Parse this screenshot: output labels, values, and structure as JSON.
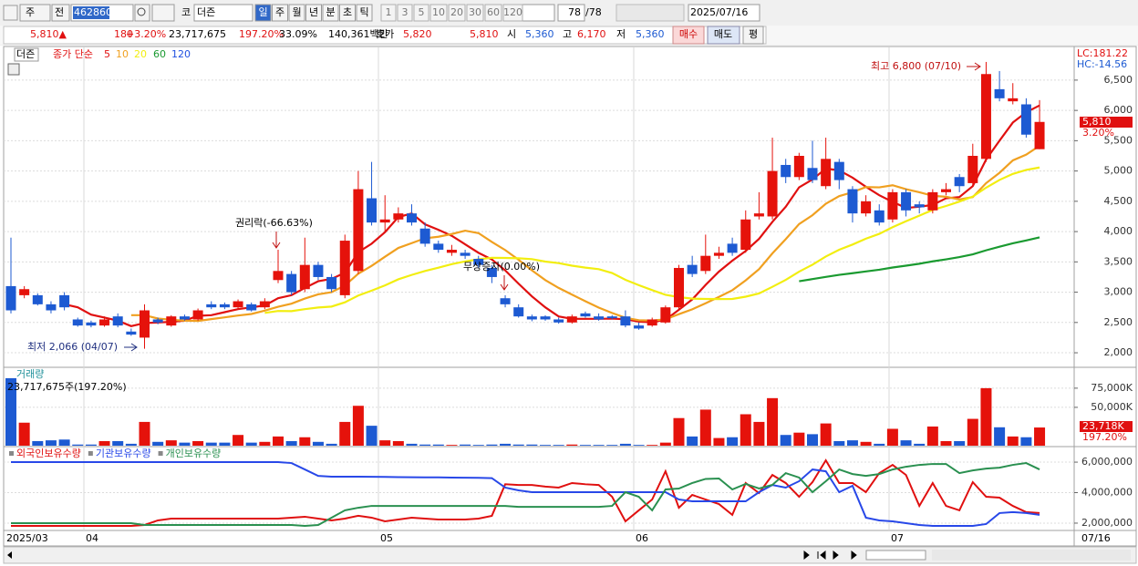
{
  "toolbar": {
    "market": "주",
    "scope": "전",
    "code": "462860",
    "prefix": "코",
    "name": "더즌",
    "periods": [
      "일",
      "주",
      "월",
      "년",
      "분",
      "초",
      "틱"
    ],
    "intervals": [
      1,
      3,
      5,
      10,
      20,
      30,
      60,
      120
    ],
    "count": 78,
    "total": "/78",
    "date": "2025/07/16"
  },
  "quote": {
    "price": "5,810▲",
    "change": 180,
    "change_pct": "+3.20%",
    "volume": "23,717,675",
    "volume_pct": "197.20%",
    "turnover": "33.09%",
    "amount": "140,361백만",
    "bid_label": "호가",
    "ask": "5,820",
    "bid": "5,810",
    "open_label": "시",
    "open": "5,360",
    "high_label": "고",
    "high": "6,170",
    "low_label": "저",
    "low": "5,360",
    "buy": "매수",
    "sell": "매도",
    "avg": "평"
  },
  "x_axis_labels": [
    "2025/03",
    "04",
    "05",
    "06",
    "07"
  ],
  "last_date": "07/16",
  "chart_data": [
    {
      "type": "candlestick",
      "name": "더즌",
      "legend_label": "종가 단순",
      "ma_periods": [
        5,
        10,
        20,
        60,
        120
      ],
      "ma_colors": [
        "#e01010",
        "#f0a020",
        "#f2ee10",
        "#1a9a30",
        "#2050e0"
      ],
      "up_color": "#e5120b",
      "down_color": "#1d5ad2",
      "open": [
        3100,
        2950,
        2950,
        2800,
        2950,
        2550,
        2500,
        2450,
        2600,
        2350,
        2250,
        2550,
        2450,
        2600,
        2550,
        2800,
        2800,
        2750,
        2800,
        2750,
        3200,
        3300,
        3050,
        3450,
        3250,
        2950,
        3350,
        4550,
        4150,
        4200,
        4300,
        4050,
        3800,
        3650,
        3650,
        3550,
        3400,
        2900,
        2750,
        2600,
        2600,
        2550,
        2500,
        2650,
        2600,
        2600,
        2600,
        2450,
        2450,
        2500,
        2750,
        3450,
        3350,
        3600,
        3800,
        3700,
        4250,
        4250,
        5100,
        4900,
        5050,
        4750,
        5150,
        4700,
        4300,
        4350,
        4200,
        4650,
        4450,
        4350,
        4650,
        4900,
        4800,
        5200,
        6350,
        6150,
        6100,
        5360
      ],
      "high": [
        3900,
        3100,
        2980,
        2850,
        3000,
        2580,
        2530,
        2600,
        2650,
        2400,
        2800,
        2580,
        2620,
        2630,
        2730,
        2850,
        2830,
        2880,
        2830,
        2900,
        3700,
        3350,
        3900,
        3500,
        3300,
        3950,
        5000,
        5150,
        4600,
        4400,
        4450,
        4150,
        3850,
        3780,
        3700,
        3600,
        3450,
        2950,
        2800,
        2630,
        2620,
        2580,
        2630,
        2680,
        2650,
        2620,
        2700,
        2500,
        2580,
        2780,
        3450,
        3600,
        3950,
        3750,
        3900,
        4350,
        4650,
        5550,
        5200,
        5300,
        5500,
        5550,
        5200,
        4750,
        4600,
        4450,
        4700,
        4700,
        4500,
        4700,
        4800,
        4950,
        5450,
        6800,
        6650,
        6450,
        6200,
        6170
      ],
      "low": [
        2650,
        2900,
        2780,
        2650,
        2700,
        2430,
        2420,
        2430,
        2420,
        2280,
        2066,
        2470,
        2430,
        2530,
        2530,
        2720,
        2720,
        2720,
        2680,
        2720,
        3150,
        2950,
        3000,
        3200,
        3000,
        2900,
        3300,
        4100,
        4000,
        4150,
        4100,
        3750,
        3650,
        3600,
        3550,
        3400,
        3150,
        2750,
        2580,
        2520,
        2530,
        2480,
        2480,
        2580,
        2530,
        2550,
        2420,
        2380,
        2430,
        2480,
        2700,
        3250,
        3300,
        3550,
        3600,
        3650,
        4200,
        4200,
        4800,
        4850,
        4800,
        4700,
        4700,
        4150,
        4250,
        4100,
        4150,
        4250,
        4300,
        4300,
        4600,
        4650,
        4750,
        5150,
        6150,
        6100,
        5550,
        5360
      ],
      "close": [
        2700,
        3050,
        2800,
        2700,
        2750,
        2450,
        2450,
        2550,
        2450,
        2300,
        2700,
        2500,
        2600,
        2550,
        2700,
        2750,
        2750,
        2850,
        2700,
        2850,
        3350,
        3000,
        3450,
        3250,
        3050,
        3850,
        4700,
        4150,
        4200,
        4300,
        4150,
        3800,
        3700,
        3700,
        3600,
        3450,
        3250,
        2800,
        2600,
        2550,
        2550,
        2500,
        2600,
        2600,
        2550,
        2570,
        2450,
        2400,
        2550,
        2750,
        3400,
        3300,
        3600,
        3650,
        3650,
        4200,
        4300,
        5000,
        4900,
        5250,
        4850,
        5200,
        4850,
        4300,
        4500,
        4150,
        4650,
        4350,
        4400,
        4650,
        4700,
        4750,
        5250,
        6600,
        6200,
        6200,
        5600,
        5810
      ],
      "ylim": [
        1760,
        7040
      ],
      "yticks": [
        {
          "value": 2000,
          "label": "2,000"
        },
        {
          "value": 2500,
          "label": "2,500"
        },
        {
          "value": 3000,
          "label": "3,000"
        },
        {
          "value": 3500,
          "label": "3,500"
        },
        {
          "value": 4000,
          "label": "4,000"
        },
        {
          "value": 4500,
          "label": "4,500"
        },
        {
          "value": 5000,
          "label": "5,000"
        },
        {
          "value": 5500,
          "label": "5,500"
        },
        {
          "value": 6000,
          "label": "6,000"
        },
        {
          "value": 6500,
          "label": "6,500"
        }
      ],
      "annotations": [
        "최고 6,800 (07/10)",
        "최저 2,066 (04/07)",
        "권리락(-66.63%)",
        "무상증자(0.00%)"
      ],
      "last_label": "5,810",
      "last_change": "3.20%",
      "lc": "LC:181.22",
      "hc": "HC:-14.56"
    },
    {
      "type": "bar",
      "title": "거래량",
      "subtitle": "23,717,675주(197.20%)",
      "values": [
        88000,
        30000,
        6000,
        7000,
        8000,
        1500,
        1500,
        6000,
        6000,
        2500,
        31000,
        5000,
        7000,
        4000,
        6000,
        4000,
        4000,
        14000,
        4000,
        5000,
        12000,
        6000,
        11000,
        5000,
        2500,
        31000,
        52000,
        26000,
        7000,
        6000,
        2500,
        1500,
        1500,
        1000,
        1500,
        1000,
        1500,
        2500,
        1500,
        1500,
        1000,
        1000,
        1500,
        1000,
        1000,
        1000,
        2500,
        1000,
        1000,
        4000,
        36000,
        12000,
        47000,
        10000,
        11000,
        41000,
        31000,
        62000,
        14000,
        17000,
        15000,
        29000,
        6000,
        7000,
        5000,
        2500,
        22000,
        7000,
        2500,
        25000,
        6000,
        6000,
        35000,
        75000,
        24000,
        12000,
        11000,
        23718
      ],
      "ylim": [
        0,
        101000
      ],
      "yticks": [
        {
          "value": 50000,
          "label": "50,000K"
        },
        {
          "value": 75000,
          "label": "75,000K"
        }
      ],
      "last_label": "23,718K",
      "last_pct": "197.20%"
    },
    {
      "type": "line",
      "ylim": [
        1520000,
        6900000
      ],
      "yticks": [
        {
          "value": 2000000,
          "label": "2,000,000"
        },
        {
          "value": 4000000,
          "label": "4,000,000"
        },
        {
          "value": 6000000,
          "label": "6,000,000"
        }
      ],
      "series": [
        {
          "name": "외국인보유수량",
          "color": "#e01010",
          "values": [
            1820000,
            1820000,
            1820000,
            1820000,
            1820000,
            1820000,
            1820000,
            1820000,
            1820000,
            1820000,
            1880000,
            2180000,
            2300000,
            2300000,
            2300000,
            2300000,
            2300000,
            2300000,
            2300000,
            2300000,
            2300000,
            2360000,
            2420000,
            2300000,
            2180000,
            2300000,
            2480000,
            2360000,
            2120000,
            2240000,
            2360000,
            2300000,
            2240000,
            2240000,
            2240000,
            2300000,
            2480000,
            4550000,
            4500000,
            4500000,
            4400000,
            4330000,
            4630000,
            4550000,
            4500000,
            3730000,
            2120000,
            2840000,
            3550000,
            5400000,
            3010000,
            3850000,
            3550000,
            3250000,
            2540000,
            4630000,
            3970000,
            5160000,
            4630000,
            3730000,
            4690000,
            6120000,
            4630000,
            4630000,
            4030000,
            5280000,
            5820000,
            5160000,
            3130000,
            4630000,
            3130000,
            2840000,
            4690000,
            3730000,
            3670000,
            3130000,
            2720000,
            2660000
          ]
        },
        {
          "name": "기관보유수량",
          "color": "#2848e8",
          "values": [
            6000000,
            6000000,
            6000000,
            6000000,
            6000000,
            6000000,
            6000000,
            6000000,
            6000000,
            6000000,
            6000000,
            6000000,
            6000000,
            6000000,
            6000000,
            6000000,
            6000000,
            6000000,
            6000000,
            6000000,
            6000000,
            5940000,
            5520000,
            5100000,
            5050000,
            5050000,
            5050000,
            5040000,
            5030000,
            5020000,
            5010000,
            5000000,
            5000000,
            4990000,
            4980000,
            4970000,
            4950000,
            4330000,
            4150000,
            4030000,
            4030000,
            4030000,
            4030000,
            4030000,
            4030000,
            4030000,
            4030000,
            4030000,
            4030000,
            4030000,
            3550000,
            3430000,
            3430000,
            3430000,
            3430000,
            3430000,
            4030000,
            4500000,
            4330000,
            4750000,
            5520000,
            5400000,
            4030000,
            4450000,
            2360000,
            2180000,
            2120000,
            2000000,
            1880000,
            1820000,
            1820000,
            1820000,
            1820000,
            1940000,
            2660000,
            2720000,
            2660000,
            2540000
          ]
        },
        {
          "name": "개인보유수량",
          "color": "#2a9050",
          "values": [
            2000000,
            2000000,
            2000000,
            2000000,
            2000000,
            2000000,
            2000000,
            2000000,
            2000000,
            2000000,
            1880000,
            1880000,
            1880000,
            1880000,
            1880000,
            1880000,
            1880000,
            1880000,
            1880000,
            1880000,
            1880000,
            1880000,
            1820000,
            1880000,
            2360000,
            2840000,
            3010000,
            3130000,
            3130000,
            3130000,
            3130000,
            3130000,
            3130000,
            3130000,
            3130000,
            3130000,
            3130000,
            3130000,
            3070000,
            3070000,
            3070000,
            3070000,
            3070000,
            3070000,
            3070000,
            3130000,
            4030000,
            3730000,
            2840000,
            4210000,
            4270000,
            4630000,
            4900000,
            4930000,
            4210000,
            4570000,
            4270000,
            4510000,
            5280000,
            4990000,
            4030000,
            4750000,
            5520000,
            5220000,
            5100000,
            5220000,
            5520000,
            5700000,
            5820000,
            5880000,
            5880000,
            5280000,
            5460000,
            5580000,
            5640000,
            5820000,
            5940000,
            5520000
          ]
        }
      ]
    }
  ]
}
